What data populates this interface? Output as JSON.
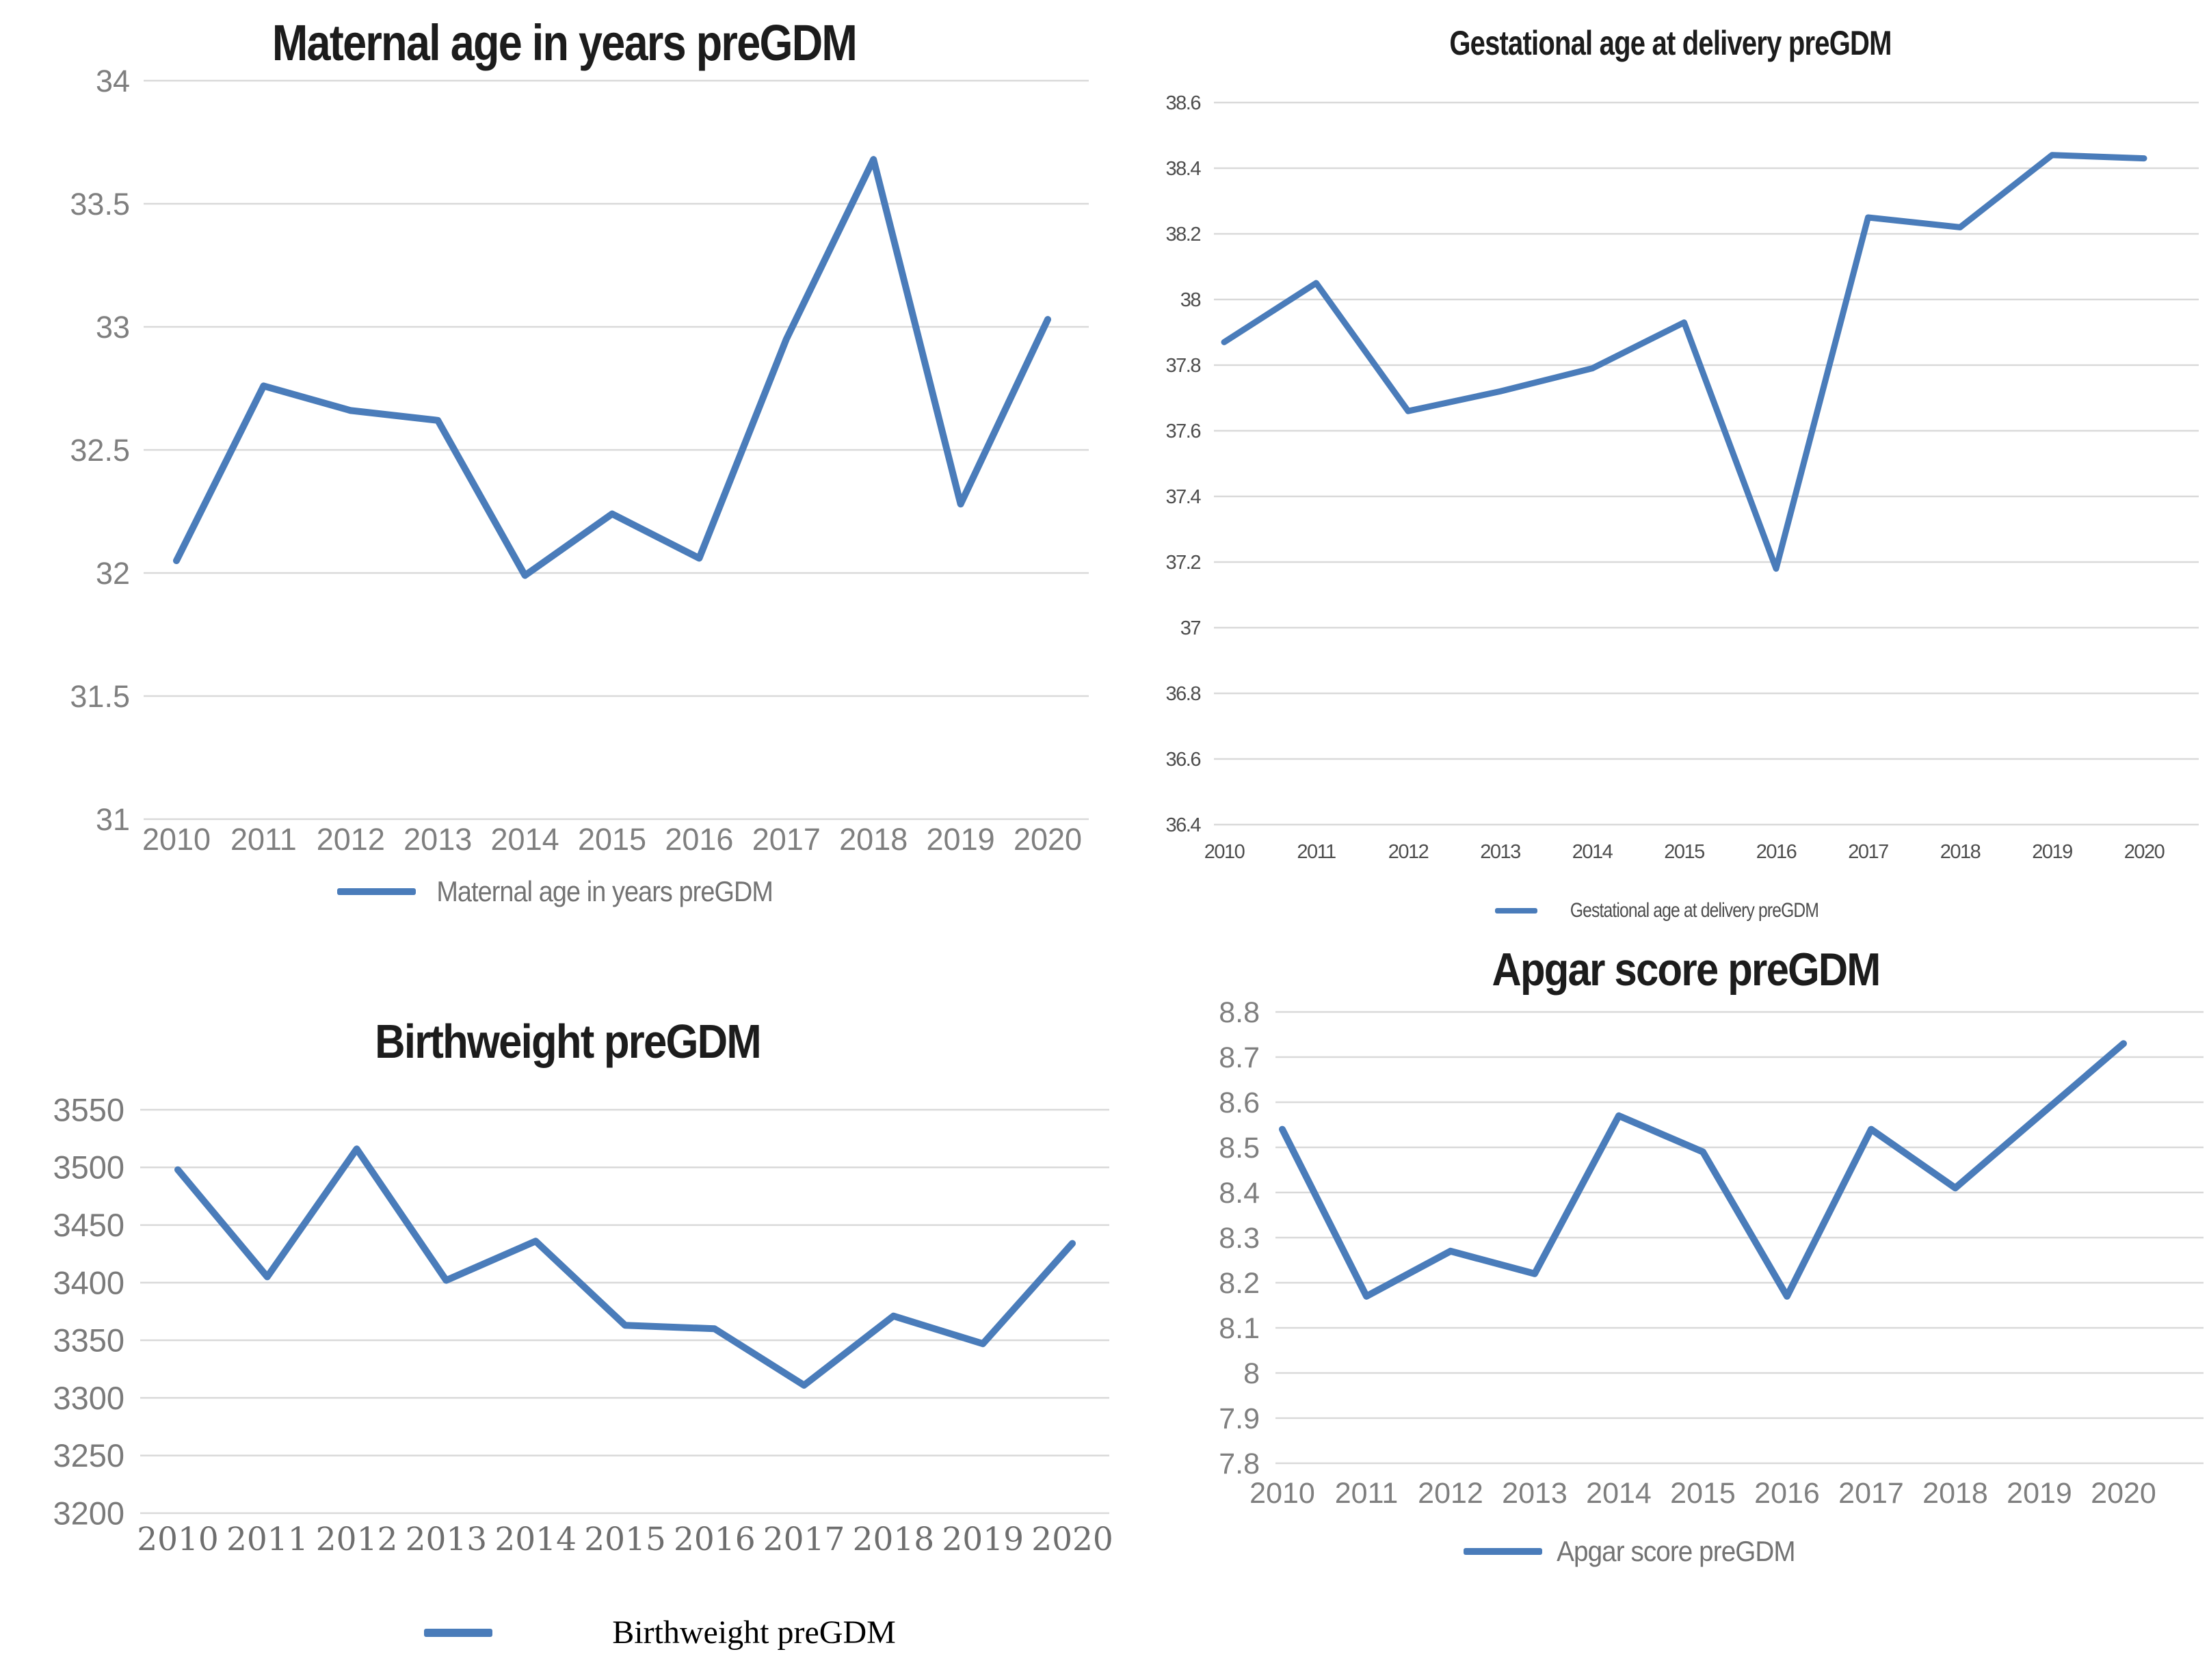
{
  "colors": {
    "line": "#4a7cba",
    "grid": "#d9d9d9",
    "title": "#1c1c1c",
    "label_gray": "#7f7f7f",
    "label_dark": "#4d4d4d",
    "legend_gray": "#737373"
  },
  "chart_data": [
    {
      "id": "maternal-age",
      "type": "line",
      "title": "Maternal age in years preGDM",
      "legend": "Maternal age in years preGDM",
      "categories": [
        "2010",
        "2011",
        "2012",
        "2013",
        "2014",
        "2015",
        "2016",
        "2017",
        "2018",
        "2019",
        "2020"
      ],
      "values": [
        32.05,
        32.76,
        32.66,
        32.62,
        31.99,
        32.24,
        32.06,
        32.95,
        33.68,
        32.28,
        33.03
      ],
      "xlabel": "",
      "ylabel": "",
      "ylim": [
        31,
        34
      ],
      "yticks": [
        {
          "label": "34",
          "value": 34
        },
        {
          "label": "33.5",
          "value": 33.5
        },
        {
          "label": "33",
          "value": 33
        },
        {
          "label": "32.5",
          "value": 32.5
        },
        {
          "label": "32",
          "value": 32
        },
        {
          "label": "31.5",
          "value": 31.5
        },
        {
          "label": "31",
          "value": 31
        }
      ],
      "grid": true,
      "legend_position": "bottom"
    },
    {
      "id": "gestational-age",
      "type": "line",
      "title": "Gestational age at delivery preGDM",
      "legend": "Gestational age at delivery preGDM",
      "categories": [
        "2010",
        "2011",
        "2012",
        "2013",
        "2014",
        "2015",
        "2016",
        "2017",
        "2018",
        "2019",
        "2020"
      ],
      "values": [
        37.87,
        38.05,
        37.66,
        37.72,
        37.79,
        37.93,
        37.18,
        38.25,
        38.22,
        38.44,
        38.43
      ],
      "xlabel": "",
      "ylabel": "",
      "ylim": [
        36.4,
        38.6
      ],
      "yticks": [
        {
          "label": "38.6",
          "value": 38.6
        },
        {
          "label": "38.4",
          "value": 38.4
        },
        {
          "label": "38.2",
          "value": 38.2
        },
        {
          "label": "38",
          "value": 38
        },
        {
          "label": "37.8",
          "value": 37.8
        },
        {
          "label": "37.6",
          "value": 37.6
        },
        {
          "label": "37.4",
          "value": 37.4
        },
        {
          "label": "37.2",
          "value": 37.2
        },
        {
          "label": "37",
          "value": 37
        },
        {
          "label": "36.8",
          "value": 36.8
        },
        {
          "label": "36.6",
          "value": 36.6
        },
        {
          "label": "36.4",
          "value": 36.4
        }
      ],
      "grid": true,
      "legend_position": "bottom"
    },
    {
      "id": "birthweight",
      "type": "line",
      "title": "Birthweight preGDM",
      "legend": "Birthweight preGDM",
      "categories": [
        "2010",
        "2011",
        "2012",
        "2013",
        "2014",
        "2015",
        "2016",
        "2017",
        "2018",
        "2019",
        "2020"
      ],
      "values": [
        3498,
        3405,
        3516,
        3402,
        3436,
        3363,
        3360,
        3311,
        3371,
        3347,
        3434
      ],
      "xlabel": "",
      "ylabel": "",
      "ylim": [
        3200,
        3550
      ],
      "yticks": [
        {
          "label": "3550",
          "value": 3550
        },
        {
          "label": "3500",
          "value": 3500
        },
        {
          "label": "3450",
          "value": 3450
        },
        {
          "label": "3400",
          "value": 3400
        },
        {
          "label": "3350",
          "value": 3350
        },
        {
          "label": "3300",
          "value": 3300
        },
        {
          "label": "3250",
          "value": 3250
        },
        {
          "label": "3200",
          "value": 3200
        }
      ],
      "grid": true,
      "legend_position": "bottom"
    },
    {
      "id": "apgar-score",
      "type": "line",
      "title": "Apgar score preGDM",
      "legend": "Apgar score preGDM",
      "categories": [
        "2010",
        "2011",
        "2012",
        "2013",
        "2014",
        "2015",
        "2016",
        "2017",
        "2018",
        "2019",
        "2020"
      ],
      "values": [
        8.54,
        8.17,
        8.27,
        8.22,
        8.57,
        8.49,
        8.17,
        8.54,
        8.41,
        8.57,
        8.73
      ],
      "xlabel": "",
      "ylabel": "",
      "ylim": [
        7.8,
        8.8
      ],
      "yticks": [
        {
          "label": "8.8",
          "value": 8.8
        },
        {
          "label": "8.7",
          "value": 8.7
        },
        {
          "label": "8.6",
          "value": 8.6
        },
        {
          "label": "8.5",
          "value": 8.5
        },
        {
          "label": "8.4",
          "value": 8.4
        },
        {
          "label": "8.3",
          "value": 8.3
        },
        {
          "label": "8.2",
          "value": 8.2
        },
        {
          "label": "8.1",
          "value": 8.1
        },
        {
          "label": "8",
          "value": 8
        },
        {
          "label": "7.9",
          "value": 7.9
        },
        {
          "label": "7.8",
          "value": 7.8
        }
      ],
      "grid": true,
      "legend_position": "bottom"
    }
  ]
}
